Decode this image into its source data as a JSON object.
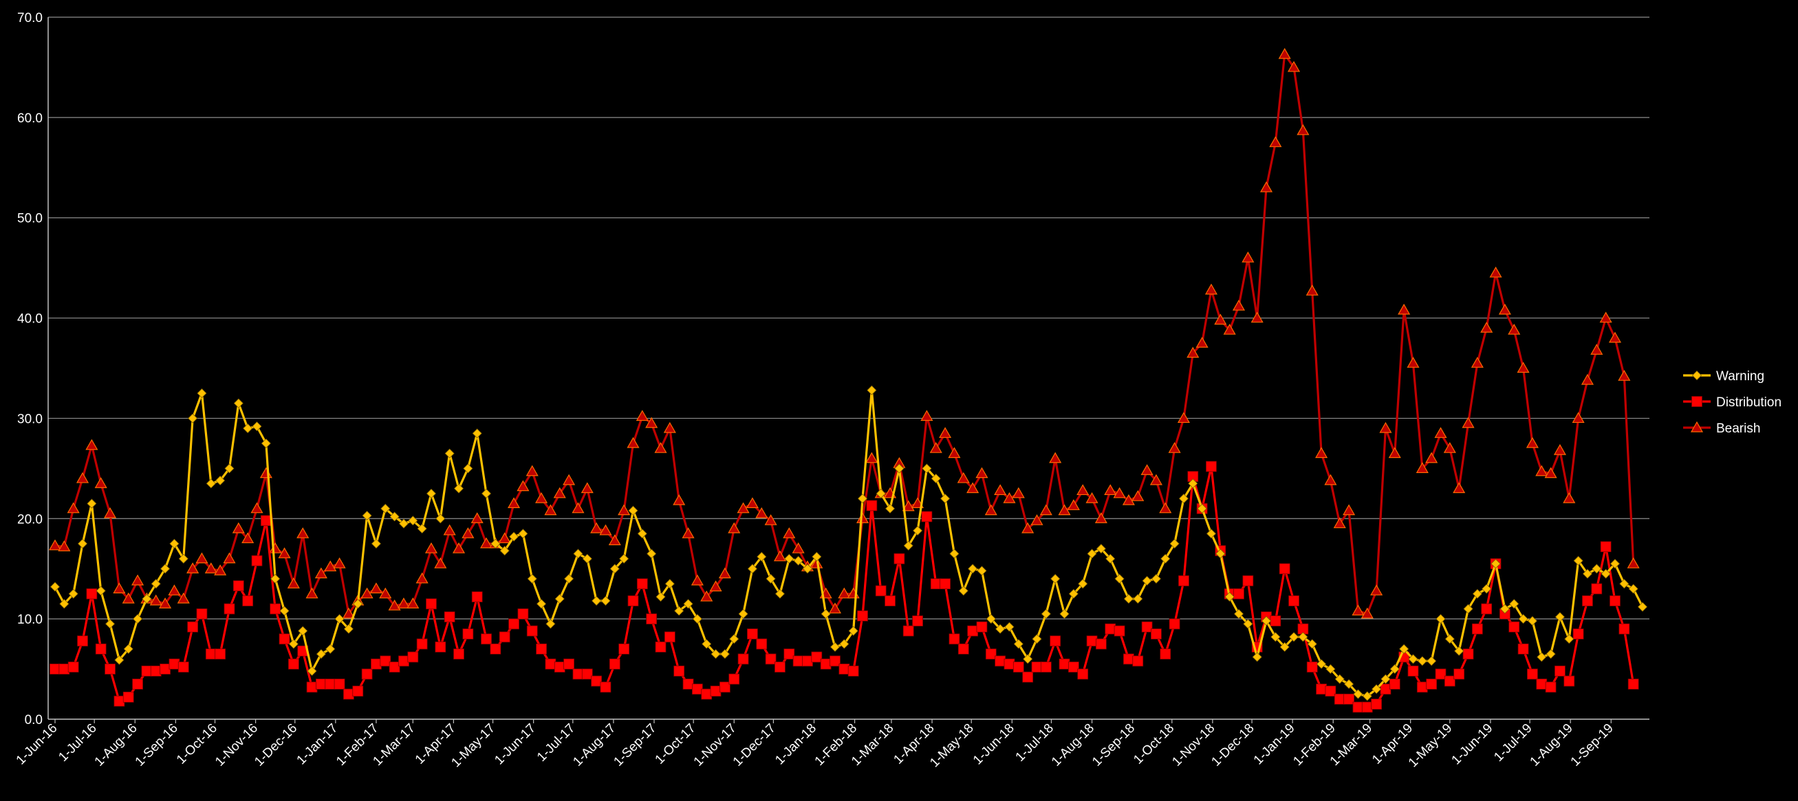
{
  "chart_data": {
    "type": "line",
    "title": "",
    "xlabel": "",
    "ylabel": "",
    "ylim": [
      0,
      70
    ],
    "yticks": [
      "0.0",
      "10.0",
      "20.0",
      "30.0",
      "40.0",
      "50.0",
      "60.0",
      "70.0"
    ],
    "grid": "horizontal",
    "legend_position": "right",
    "x_start": "2016-06-01",
    "x_step": "weekly",
    "x_tick_labels": [
      "1-Jun-16",
      "1-Jul-16",
      "1-Aug-16",
      "1-Sep-16",
      "1-Oct-16",
      "1-Nov-16",
      "1-Dec-16",
      "1-Jan-17",
      "1-Feb-17",
      "1-Mar-17",
      "1-Apr-17",
      "1-May-17",
      "1-Jun-17",
      "1-Jul-17",
      "1-Aug-17",
      "1-Sep-17",
      "1-Oct-17",
      "1-Nov-17",
      "1-Dec-17",
      "1-Jan-18",
      "1-Feb-18",
      "1-Mar-18",
      "1-Apr-18",
      "1-May-18",
      "1-Jun-18",
      "1-Jul-18",
      "1-Aug-18",
      "1-Sep-18",
      "1-Oct-18",
      "1-Nov-18",
      "1-Dec-18",
      "1-Jan-19",
      "1-Feb-19",
      "1-Mar-19",
      "1-Apr-19",
      "1-May-19",
      "1-Jun-19",
      "1-Jul-19",
      "1-Aug-19",
      "1-Sep-19"
    ],
    "series": [
      {
        "name": "Warning",
        "color": "#FFC000",
        "marker": "diamond",
        "values": [
          13.2,
          11.5,
          12.5,
          17.5,
          21.5,
          12.8,
          9.5,
          5.9,
          7.0,
          10.0,
          12.0,
          13.5,
          15.0,
          17.5,
          16.0,
          30.0,
          32.5,
          23.5,
          23.8,
          25.0,
          31.5,
          29.0,
          29.2,
          27.5,
          14.0,
          10.8,
          7.5,
          8.8,
          4.8,
          6.5,
          7.0,
          10.0,
          9.0,
          11.5,
          20.3,
          17.5,
          21.0,
          20.2,
          19.5,
          19.8,
          19.0,
          22.5,
          20.0,
          26.5,
          23.0,
          25.0,
          28.5,
          22.5,
          17.5,
          16.8,
          18.2,
          18.5,
          14.0,
          11.5,
          9.5,
          12.0,
          14.0,
          16.5,
          16.0,
          11.8,
          11.8,
          15.0,
          16.0,
          20.8,
          18.5,
          16.5,
          12.2,
          13.5,
          10.8,
          11.5,
          10.0,
          7.5,
          6.5,
          6.5,
          8.0,
          10.5,
          15.0,
          16.2,
          14.0,
          12.5,
          16.0,
          15.8,
          15.0,
          16.2,
          10.5,
          7.2,
          7.5,
          8.8,
          22.0,
          32.8,
          22.5,
          21.0,
          25.0,
          17.3,
          18.8,
          25.0,
          24.0,
          22.0,
          16.5,
          12.8,
          15.0,
          14.8,
          10.0,
          9.0,
          9.2,
          7.5,
          6.0,
          8.0,
          10.5,
          14.0,
          10.5,
          12.5,
          13.5,
          16.5,
          17.0,
          16.0,
          14.0,
          12.0,
          12.0,
          13.8,
          14.0,
          16.0,
          17.5,
          22.0,
          23.5,
          21.0,
          18.5,
          16.5,
          12.2,
          10.5,
          9.5,
          6.2,
          9.8,
          8.2,
          7.2,
          8.2,
          8.2,
          7.5,
          5.5,
          5.0,
          4.0,
          3.5,
          2.5,
          2.3,
          3.0,
          4.0,
          5.0,
          7.0,
          6.0,
          5.8,
          5.8,
          10.0,
          8.0,
          6.8,
          11.0,
          12.5,
          13.0,
          15.5,
          11.0,
          11.5,
          10.0,
          9.8,
          6.2,
          6.5,
          10.2,
          8.0,
          15.8,
          14.5,
          15.0,
          14.5,
          15.5,
          13.5,
          13.0,
          11.2
        ]
      },
      {
        "name": "Distribution",
        "color": "#FF0000",
        "marker": "square",
        "values": [
          5.0,
          5.0,
          5.2,
          7.8,
          12.5,
          7.0,
          5.0,
          1.8,
          2.2,
          3.5,
          4.8,
          4.8,
          5.0,
          5.5,
          5.2,
          9.2,
          10.5,
          6.5,
          6.5,
          11.0,
          13.3,
          11.8,
          15.8,
          19.8,
          11.0,
          8.0,
          5.5,
          6.8,
          3.2,
          3.5,
          3.5,
          3.5,
          2.5,
          2.8,
          4.5,
          5.5,
          5.8,
          5.2,
          5.8,
          6.2,
          7.5,
          11.5,
          7.2,
          10.2,
          6.5,
          8.5,
          12.2,
          8.0,
          7.0,
          8.2,
          9.5,
          10.5,
          8.8,
          7.0,
          5.5,
          5.2,
          5.5,
          4.5,
          4.5,
          3.8,
          3.2,
          5.5,
          7.0,
          11.8,
          13.5,
          10.0,
          7.2,
          8.2,
          4.8,
          3.5,
          3.0,
          2.5,
          2.8,
          3.2,
          4.0,
          6.0,
          8.5,
          7.5,
          6.0,
          5.2,
          6.5,
          5.8,
          5.8,
          6.2,
          5.5,
          5.8,
          5.0,
          4.8,
          10.3,
          21.3,
          12.8,
          11.8,
          16.0,
          8.8,
          9.8,
          20.2,
          13.5,
          13.5,
          8.0,
          7.0,
          8.8,
          9.2,
          6.5,
          5.8,
          5.5,
          5.2,
          4.2,
          5.2,
          5.2,
          7.8,
          5.5,
          5.2,
          4.5,
          7.8,
          7.5,
          9.0,
          8.8,
          6.0,
          5.8,
          9.2,
          8.5,
          6.5,
          9.5,
          13.8,
          24.2,
          21.0,
          25.2,
          16.8,
          12.5,
          12.5,
          13.8,
          7.2,
          10.2,
          9.8,
          15.0,
          11.8,
          9.0,
          5.2,
          3.0,
          2.8,
          2.0,
          2.0,
          1.2,
          1.2,
          1.5,
          3.0,
          3.5,
          6.2,
          4.8,
          3.2,
          3.5,
          4.5,
          3.8,
          4.5,
          6.5,
          9.0,
          11.0,
          15.5,
          10.5,
          9.2,
          7.0,
          4.5,
          3.5,
          3.2,
          4.8,
          3.8,
          8.5,
          11.8,
          13.0,
          17.2,
          11.8,
          9.0,
          3.5
        ]
      },
      {
        "name": "Bearish",
        "color": "#C00000",
        "marker": "triangle",
        "values": [
          17.3,
          17.2,
          21.0,
          24.0,
          27.3,
          23.5,
          20.5,
          13.0,
          12.0,
          13.8,
          12.0,
          11.8,
          11.5,
          12.8,
          12.0,
          15.0,
          16.0,
          15.0,
          14.8,
          16.0,
          19.0,
          18.0,
          21.0,
          24.5,
          17.0,
          16.5,
          13.5,
          18.5,
          12.5,
          14.5,
          15.2,
          15.5,
          10.5,
          11.8,
          12.5,
          13.0,
          12.5,
          11.3,
          11.5,
          11.5,
          14.0,
          17.0,
          15.5,
          18.8,
          17.0,
          18.5,
          20.0,
          17.5,
          17.5,
          18.0,
          21.5,
          23.2,
          24.7,
          22.0,
          20.8,
          22.5,
          23.8,
          21.0,
          23.0,
          19.0,
          18.8,
          17.8,
          20.8,
          27.5,
          30.2,
          29.5,
          27.0,
          29.0,
          21.8,
          18.5,
          13.8,
          12.2,
          13.2,
          14.5,
          19.0,
          21.0,
          21.5,
          20.5,
          19.8,
          16.2,
          18.5,
          17.0,
          15.2,
          15.5,
          12.5,
          11.0,
          12.5,
          12.5,
          20.0,
          26.0,
          22.5,
          22.5,
          25.5,
          21.2,
          21.5,
          30.2,
          27.0,
          28.5,
          26.5,
          24.0,
          23.0,
          24.5,
          20.8,
          22.8,
          22.0,
          22.5,
          19.0,
          19.8,
          20.8,
          26.0,
          20.8,
          21.3,
          22.8,
          22.0,
          20.0,
          22.8,
          22.5,
          21.8,
          22.2,
          24.8,
          23.8,
          21.0,
          27.0,
          30.0,
          36.5,
          37.5,
          42.8,
          39.8,
          38.8,
          41.2,
          46.0,
          40.0,
          53.0,
          57.5,
          66.3,
          65.0,
          58.7,
          42.7,
          26.5,
          23.8,
          19.5,
          20.8,
          10.8,
          10.5,
          12.8,
          29.0,
          26.5,
          40.8,
          35.5,
          25.0,
          26.0,
          28.5,
          27.0,
          23.0,
          29.5,
          35.5,
          39.0,
          44.5,
          40.8,
          38.8,
          35.0,
          27.5,
          24.7,
          24.5,
          26.8,
          22.0,
          30.0,
          33.8,
          36.8,
          40.0,
          38.0,
          34.2,
          15.5
        ]
      }
    ]
  }
}
